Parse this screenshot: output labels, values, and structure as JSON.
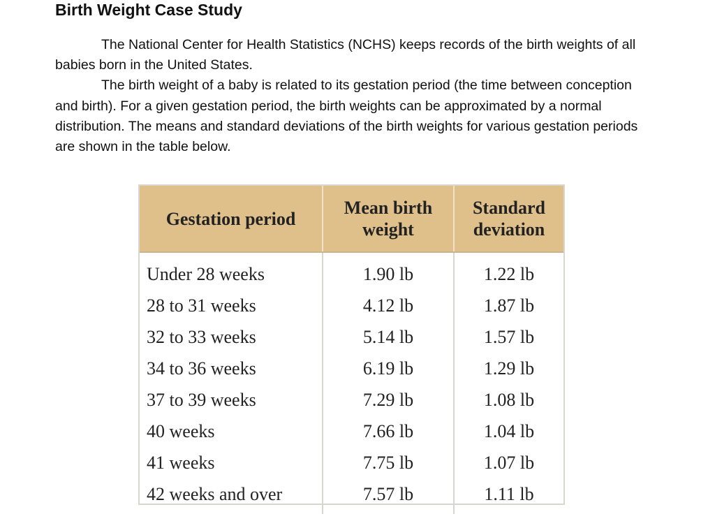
{
  "document": {
    "title": "Birth Weight Case Study",
    "paragraphs": [
      "The National Center for Health Statistics (NCHS) keeps records of the birth weights of all babies born in the United States.",
      "The birth weight of a baby is related to its gestation period (the time between conception and birth).  For a given gestation period, the birth weights can be approximated by a normal distribution.  The means and standard deviations of the birth weights for various gestation periods are shown in the table below."
    ]
  },
  "table": {
    "header_color": "#dfc08b",
    "headers": [
      "Gestation period",
      "Mean birth weight",
      "Standard deviation"
    ],
    "rows": [
      [
        "Under 28 weeks",
        "1.90 lb",
        "1.22 lb"
      ],
      [
        "28 to 31 weeks",
        "4.12 lb",
        "1.87 lb"
      ],
      [
        "32 to 33 weeks",
        "5.14 lb",
        "1.57 lb"
      ],
      [
        "34 to 36 weeks",
        "6.19 lb",
        "1.29 lb"
      ],
      [
        "37 to 39 weeks",
        "7.29 lb",
        "1.08 lb"
      ],
      [
        "40 weeks",
        "7.66 lb",
        "1.04 lb"
      ],
      [
        "41 weeks",
        "7.75 lb",
        "1.07 lb"
      ],
      [
        "42 weeks and over",
        "7.57 lb",
        "1.11 lb"
      ]
    ]
  }
}
